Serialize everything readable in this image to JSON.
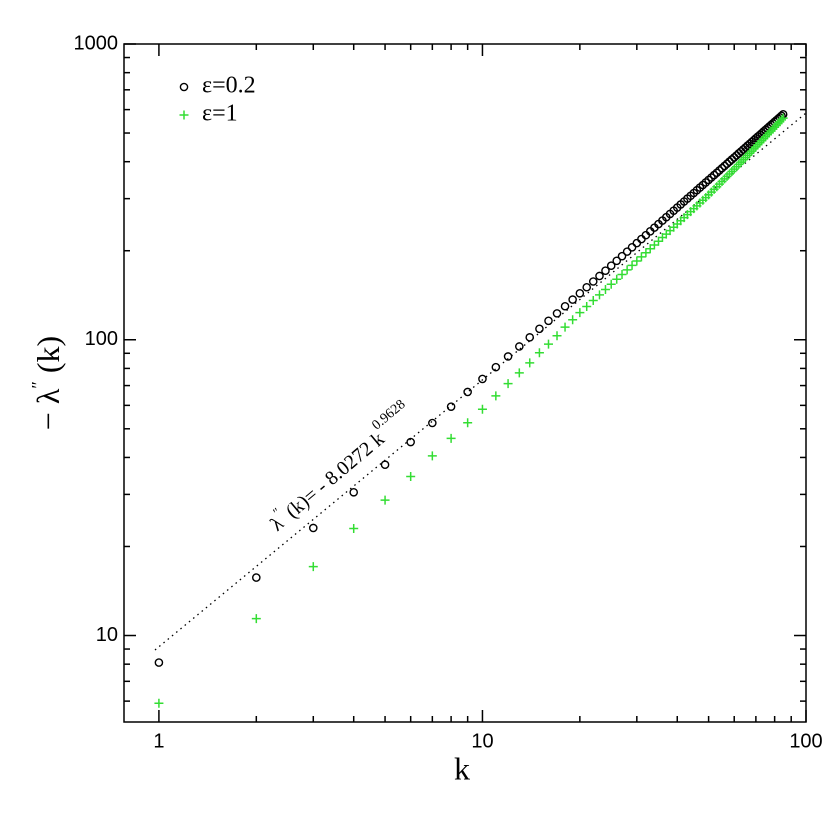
{
  "chart_data": {
    "type": "scatter",
    "log_x": true,
    "log_y": true,
    "x_label": "k",
    "y_label": [
      "− λ",
      "″",
      " (k)"
    ],
    "annotation": [
      "λ",
      "″",
      " (k)= - 8.0272 k",
      "0.9628"
    ],
    "legend": "upper left",
    "xlim": [
      0.78,
      100
    ],
    "ylim": [
      5.1,
      1000
    ],
    "xticks": [
      1,
      10,
      100
    ],
    "yticks": [
      10,
      100,
      1000
    ],
    "xminor": [
      2,
      3,
      4,
      5,
      6,
      7,
      8,
      9,
      20,
      30,
      40,
      50,
      60,
      70,
      80,
      90
    ],
    "yminor": [
      6,
      7,
      8,
      9,
      20,
      30,
      40,
      50,
      60,
      70,
      80,
      90,
      200,
      300,
      400,
      500,
      600,
      700,
      800,
      900
    ],
    "x": [
      1,
      2,
      3,
      4,
      5,
      6,
      7,
      8,
      9,
      10,
      11,
      12,
      13,
      14,
      15,
      16,
      17,
      18,
      19,
      20,
      21,
      22,
      23,
      24,
      25,
      26,
      27,
      28,
      29,
      30,
      31,
      32,
      33,
      34,
      35,
      36,
      37,
      38,
      39,
      40,
      41,
      42,
      43,
      44,
      45,
      46,
      47,
      48,
      49,
      50,
      51,
      52,
      53,
      54,
      55,
      56,
      57,
      58,
      59,
      60,
      61,
      62,
      63,
      64,
      65,
      66,
      67,
      68,
      69,
      70,
      71,
      72,
      73,
      74,
      75,
      76,
      77,
      78,
      79,
      80,
      81,
      82,
      83,
      84,
      85
    ],
    "series": [
      {
        "name": "ε=0.2",
        "color": "#000000",
        "marker": "circle",
        "values": [
          8.1,
          15.7,
          23.1,
          30.5,
          37.8,
          45.1,
          52.3,
          59.4,
          66.6,
          73.7,
          80.8,
          87.8,
          94.9,
          101.9,
          108.9,
          115.9,
          122.8,
          129.8,
          136.7,
          143.6,
          150.5,
          157.4,
          164.3,
          171.2,
          178.0,
          184.9,
          191.7,
          198.6,
          205.4,
          212.2,
          219.0,
          225.8,
          232.6,
          239.4,
          246.1,
          252.9,
          259.7,
          266.4,
          273.2,
          279.9,
          286.7,
          293.4,
          300.1,
          306.8,
          313.5,
          320.3,
          327.0,
          333.6,
          340.3,
          347.0,
          353.7,
          360.4,
          367.0,
          373.7,
          380.4,
          387.0,
          393.7,
          400.3,
          407.0,
          413.6,
          420.2,
          426.9,
          433.5,
          440.1,
          446.7,
          453.4,
          459.9,
          466.5,
          473.2,
          479.8,
          486.4,
          492.9,
          499.6,
          506.2,
          512.7,
          519.3,
          525.9,
          532.5,
          539.0,
          545.6,
          552.2,
          558.7,
          565.3,
          571.9,
          578.4
        ]
      },
      {
        "name": "ε=1",
        "color": "#33dd33",
        "marker": "plus",
        "values": [
          5.9,
          11.4,
          17.1,
          23.0,
          28.7,
          34.5,
          40.5,
          46.4,
          52.4,
          58.2,
          64.6,
          71.1,
          77.3,
          83.5,
          90.4,
          96.7,
          103.2,
          110.3,
          116.9,
          123.5,
          129.6,
          135.7,
          141.8,
          147.9,
          154.0,
          160.1,
          166.2,
          172.3,
          178.5,
          184.6,
          190.7,
          196.9,
          203.0,
          209.2,
          215.4,
          221.6,
          227.7,
          233.9,
          240.1,
          246.3,
          252.5,
          258.8,
          265.0,
          271.2,
          277.5,
          283.7,
          290.0,
          296.3,
          302.5,
          308.8,
          315.6,
          322.4,
          329.2,
          336.0,
          342.9,
          349.8,
          356.7,
          363.6,
          370.6,
          377.6,
          384.6,
          391.7,
          398.8,
          405.9,
          413.0,
          420.2,
          427.3,
          434.5,
          441.8,
          449.0,
          456.4,
          463.7,
          471.0,
          478.4,
          485.8,
          493.2,
          500.7,
          508.2,
          515.7,
          523.2,
          530.8,
          538.4,
          546.0,
          553.7,
          561.3
        ]
      }
    ]
  }
}
